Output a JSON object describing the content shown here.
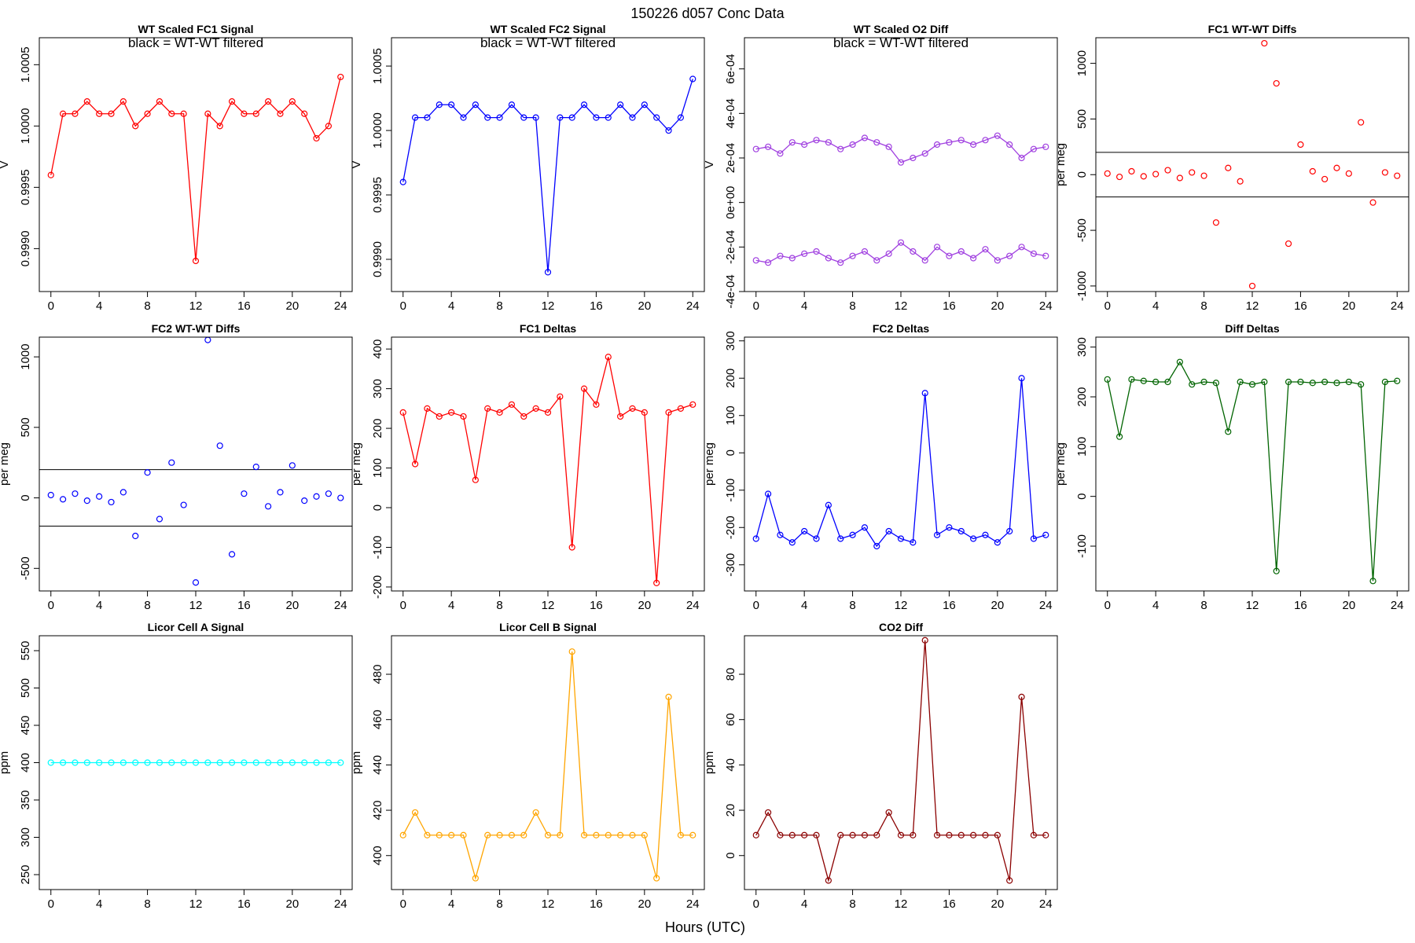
{
  "title": "150226    d057    Conc Data",
  "xlabel": "Hours (UTC)",
  "chart_data": [
    {
      "type": "line",
      "title": "WT Scaled FC1 Signal",
      "annotation": "black = WT-WT filtered",
      "ylabel": "V",
      "x": [
        0,
        1,
        2,
        3,
        4,
        5,
        6,
        7,
        8,
        9,
        10,
        11,
        12,
        13,
        14,
        15,
        16,
        17,
        18,
        19,
        20,
        21,
        22,
        23,
        24
      ],
      "series": [
        {
          "color": "#ff0000",
          "values": [
            0.9996,
            1.0001,
            1.0001,
            1.0002,
            1.0001,
            1.0001,
            1.0002,
            1.0,
            1.0001,
            1.0002,
            1.0001,
            1.0001,
            0.9989,
            1.0001,
            1.0,
            1.0002,
            1.0001,
            1.0001,
            1.0002,
            1.0001,
            1.0002,
            1.0001,
            0.9999,
            1.0,
            1.0004
          ]
        }
      ],
      "markers": true,
      "xlim": [
        -0.96,
        24.96
      ],
      "ylim": [
        0.99865,
        1.00072
      ],
      "xticks": [
        0,
        4,
        8,
        12,
        16,
        20,
        24
      ],
      "yticks": [
        {
          "value": 0.999,
          "label": "0.9990"
        },
        0.9995,
        {
          "value": 1.0,
          "label": "1.0000"
        },
        1.0005
      ]
    },
    {
      "type": "line",
      "title": "WT Scaled FC2 Signal",
      "annotation": "black = WT-WT filtered",
      "ylabel": "V",
      "x": [
        0,
        1,
        2,
        3,
        4,
        5,
        6,
        7,
        8,
        9,
        10,
        11,
        12,
        13,
        14,
        15,
        16,
        17,
        18,
        19,
        20,
        21,
        22,
        23,
        24
      ],
      "series": [
        {
          "color": "#0000ff",
          "values": [
            0.9996,
            1.0001,
            1.0001,
            1.0002,
            1.0002,
            1.0001,
            1.0002,
            1.0001,
            1.0001,
            1.0002,
            1.0001,
            1.0001,
            0.9989,
            1.0001,
            1.0001,
            1.0002,
            1.0001,
            1.0001,
            1.0002,
            1.0001,
            1.0002,
            1.0001,
            1.0,
            1.0001,
            1.0004
          ]
        }
      ],
      "markers": true,
      "xlim": [
        -0.96,
        24.96
      ],
      "ylim": [
        0.99875,
        1.00072
      ],
      "xticks": [
        0,
        4,
        8,
        12,
        16,
        20,
        24
      ],
      "yticks": [
        {
          "value": 0.999,
          "label": "0.9990"
        },
        0.9995,
        {
          "value": 1.0,
          "label": "1.0000"
        },
        1.0005
      ]
    },
    {
      "type": "line",
      "title": "WT Scaled O2 Diff",
      "annotation": "black = WT-WT filtered",
      "ylabel": "V",
      "x": [
        0,
        1,
        2,
        3,
        4,
        5,
        6,
        7,
        8,
        9,
        10,
        11,
        12,
        13,
        14,
        15,
        16,
        17,
        18,
        19,
        20,
        21,
        22,
        23,
        24
      ],
      "series": [
        {
          "color": "#a040e0",
          "values": [
            0.00024,
            0.00025,
            0.00022,
            0.00027,
            0.00026,
            0.00028,
            0.00027,
            0.00024,
            0.00026,
            0.00029,
            0.00027,
            0.00025,
            0.00018,
            0.0002,
            0.00022,
            0.00026,
            0.00027,
            0.00028,
            0.00026,
            0.00028,
            0.0003,
            0.00026,
            0.0002,
            0.00024,
            0.00025
          ]
        },
        {
          "color": "#a040e0",
          "values": [
            -0.00026,
            -0.00027,
            -0.00024,
            -0.00025,
            -0.00023,
            -0.00022,
            -0.00025,
            -0.00027,
            -0.00024,
            -0.00022,
            -0.00026,
            -0.00023,
            -0.00018,
            -0.00022,
            -0.00026,
            -0.0002,
            -0.00024,
            -0.00022,
            -0.00025,
            -0.00021,
            -0.00026,
            -0.00024,
            -0.0002,
            -0.00023,
            -0.00024
          ]
        }
      ],
      "markers": true,
      "xlim": [
        -0.96,
        24.96
      ],
      "ylim": [
        -0.0004,
        0.00074
      ],
      "xticks": [
        0,
        4,
        8,
        12,
        16,
        20,
        24
      ],
      "yticks": [
        {
          "value": -0.0004,
          "label": "-4e-04"
        },
        {
          "value": -0.0002,
          "label": "-2e-04"
        },
        {
          "value": 0,
          "label": "0e+00"
        },
        {
          "value": 0.0002,
          "label": "2e-04"
        },
        {
          "value": 0.0004,
          "label": "4e-04"
        },
        {
          "value": 0.0006,
          "label": "6e-04"
        }
      ]
    },
    {
      "type": "scatter",
      "title": "FC1 WT-WT Diffs",
      "ylabel": "per meg",
      "x": [
        0,
        1,
        2,
        3,
        4,
        5,
        6,
        7,
        8,
        9,
        10,
        11,
        12,
        13,
        14,
        15,
        16,
        17,
        18,
        19,
        20,
        21,
        22,
        23,
        24
      ],
      "series": [
        {
          "color": "#ff0000",
          "values": [
            10,
            -20,
            30,
            -15,
            5,
            40,
            -30,
            20,
            -10,
            -430,
            60,
            -60,
            -1000,
            1180,
            820,
            -620,
            270,
            30,
            -40,
            60,
            10,
            470,
            -250,
            20,
            -10
          ]
        }
      ],
      "hlines": [
        200,
        -200
      ],
      "xlim": [
        -0.96,
        24.96
      ],
      "ylim": [
        -1050,
        1230
      ],
      "xticks": [
        0,
        4,
        8,
        12,
        16,
        20,
        24
      ],
      "yticks": [
        -1000,
        -500,
        0,
        500,
        1000
      ]
    },
    {
      "type": "scatter",
      "title": "FC2 WT-WT Diffs",
      "ylabel": "per meg",
      "x": [
        0,
        1,
        2,
        3,
        4,
        5,
        6,
        7,
        8,
        9,
        10,
        11,
        12,
        13,
        14,
        15,
        16,
        17,
        18,
        19,
        20,
        21,
        22,
        23,
        24
      ],
      "series": [
        {
          "color": "#0000ff",
          "values": [
            20,
            -10,
            30,
            -20,
            10,
            -30,
            40,
            -270,
            180,
            -150,
            250,
            -50,
            -600,
            1120,
            370,
            -400,
            30,
            220,
            -60,
            40,
            230,
            -20,
            10,
            30,
            0
          ]
        }
      ],
      "hlines": [
        200,
        -200
      ],
      "xlim": [
        -0.96,
        24.96
      ],
      "ylim": [
        -660,
        1140
      ],
      "xticks": [
        0,
        4,
        8,
        12,
        16,
        20,
        24
      ],
      "yticks": [
        -500,
        0,
        500,
        1000
      ]
    },
    {
      "type": "line",
      "title": "FC1 Deltas",
      "ylabel": "per meg",
      "x": [
        0,
        1,
        2,
        3,
        4,
        5,
        6,
        7,
        8,
        9,
        10,
        11,
        12,
        13,
        14,
        15,
        16,
        17,
        18,
        19,
        20,
        21,
        22,
        23,
        24
      ],
      "series": [
        {
          "color": "#ff0000",
          "values": [
            240,
            110,
            250,
            230,
            240,
            230,
            70,
            250,
            240,
            260,
            230,
            250,
            240,
            280,
            -100,
            300,
            260,
            380,
            230,
            250,
            240,
            -190,
            240,
            250,
            260
          ]
        }
      ],
      "markers": true,
      "xlim": [
        -0.96,
        24.96
      ],
      "ylim": [
        -210,
        430
      ],
      "xticks": [
        0,
        4,
        8,
        12,
        16,
        20,
        24
      ],
      "yticks": [
        -200,
        -100,
        0,
        100,
        200,
        300,
        400
      ]
    },
    {
      "type": "line",
      "title": "FC2 Deltas",
      "ylabel": "per meg",
      "x": [
        0,
        1,
        2,
        3,
        4,
        5,
        6,
        7,
        8,
        9,
        10,
        11,
        12,
        13,
        14,
        15,
        16,
        17,
        18,
        19,
        20,
        21,
        22,
        23,
        24
      ],
      "series": [
        {
          "color": "#0000ff",
          "values": [
            -230,
            -110,
            -220,
            -240,
            -210,
            -230,
            -140,
            -230,
            -220,
            -200,
            -250,
            -210,
            -230,
            -240,
            160,
            -220,
            -200,
            -210,
            -230,
            -220,
            -240,
            -210,
            200,
            -230,
            -220
          ]
        }
      ],
      "markers": true,
      "xlim": [
        -0.96,
        24.96
      ],
      "ylim": [
        -370,
        310
      ],
      "xticks": [
        0,
        4,
        8,
        12,
        16,
        20,
        24
      ],
      "yticks": [
        -300,
        -200,
        -100,
        0,
        100,
        200,
        300
      ]
    },
    {
      "type": "line",
      "title": "Diff Deltas",
      "ylabel": "per meg",
      "x": [
        0,
        1,
        2,
        3,
        4,
        5,
        6,
        7,
        8,
        9,
        10,
        11,
        12,
        13,
        14,
        15,
        16,
        17,
        18,
        19,
        20,
        21,
        22,
        23,
        24
      ],
      "series": [
        {
          "color": "#006400",
          "values": [
            235,
            120,
            235,
            232,
            230,
            230,
            270,
            225,
            230,
            228,
            130,
            230,
            225,
            230,
            -150,
            230,
            230,
            228,
            230,
            228,
            230,
            225,
            -170,
            230,
            232
          ]
        }
      ],
      "markers": true,
      "xlim": [
        -0.96,
        24.96
      ],
      "ylim": [
        -190,
        320
      ],
      "xticks": [
        0,
        4,
        8,
        12,
        16,
        20,
        24
      ],
      "yticks": [
        -100,
        0,
        100,
        200,
        300
      ]
    },
    {
      "type": "line",
      "title": "Licor Cell A Signal",
      "ylabel": "ppm",
      "x": [
        0,
        1,
        2,
        3,
        4,
        5,
        6,
        7,
        8,
        9,
        10,
        11,
        12,
        13,
        14,
        15,
        16,
        17,
        18,
        19,
        20,
        21,
        22,
        23,
        24
      ],
      "series": [
        {
          "color": "#00ffff",
          "values": [
            400,
            400,
            400,
            400,
            400,
            400,
            400,
            400,
            400,
            400,
            400,
            400,
            400,
            400,
            400,
            400,
            400,
            400,
            400,
            400,
            400,
            400,
            400,
            400,
            400
          ]
        }
      ],
      "markers": true,
      "xlim": [
        -0.96,
        24.96
      ],
      "ylim": [
        230,
        570
      ],
      "xticks": [
        0,
        4,
        8,
        12,
        16,
        20,
        24
      ],
      "yticks": [
        250,
        300,
        350,
        400,
        450,
        500,
        550
      ]
    },
    {
      "type": "line",
      "title": "Licor Cell B Signal",
      "ylabel": "ppm",
      "x": [
        0,
        1,
        2,
        3,
        4,
        5,
        6,
        7,
        8,
        9,
        10,
        11,
        12,
        13,
        14,
        15,
        16,
        17,
        18,
        19,
        20,
        21,
        22,
        23,
        24
      ],
      "series": [
        {
          "color": "#ffa500",
          "values": [
            409,
            419,
            409,
            409,
            409,
            409,
            390,
            409,
            409,
            409,
            409,
            419,
            409,
            409,
            490,
            409,
            409,
            409,
            409,
            409,
            409,
            390,
            470,
            409,
            409
          ]
        }
      ],
      "markers": true,
      "xlim": [
        -0.96,
        24.96
      ],
      "ylim": [
        385,
        497
      ],
      "xticks": [
        0,
        4,
        8,
        12,
        16,
        20,
        24
      ],
      "yticks": [
        400,
        420,
        440,
        460,
        480
      ]
    },
    {
      "type": "line",
      "title": "CO2 Diff",
      "ylabel": "ppm",
      "x": [
        0,
        1,
        2,
        3,
        4,
        5,
        6,
        7,
        8,
        9,
        10,
        11,
        12,
        13,
        14,
        15,
        16,
        17,
        18,
        19,
        20,
        21,
        22,
        23,
        24
      ],
      "series": [
        {
          "color": "#8b0000",
          "values": [
            9,
            19,
            9,
            9,
            9,
            9,
            -11,
            9,
            9,
            9,
            9,
            19,
            9,
            9,
            95,
            9,
            9,
            9,
            9,
            9,
            9,
            -11,
            70,
            9,
            9
          ]
        }
      ],
      "markers": true,
      "xlim": [
        -0.96,
        24.96
      ],
      "ylim": [
        -15,
        97
      ],
      "xticks": [
        0,
        4,
        8,
        12,
        16,
        20,
        24
      ],
      "yticks": [
        0,
        20,
        40,
        60,
        80
      ]
    }
  ]
}
